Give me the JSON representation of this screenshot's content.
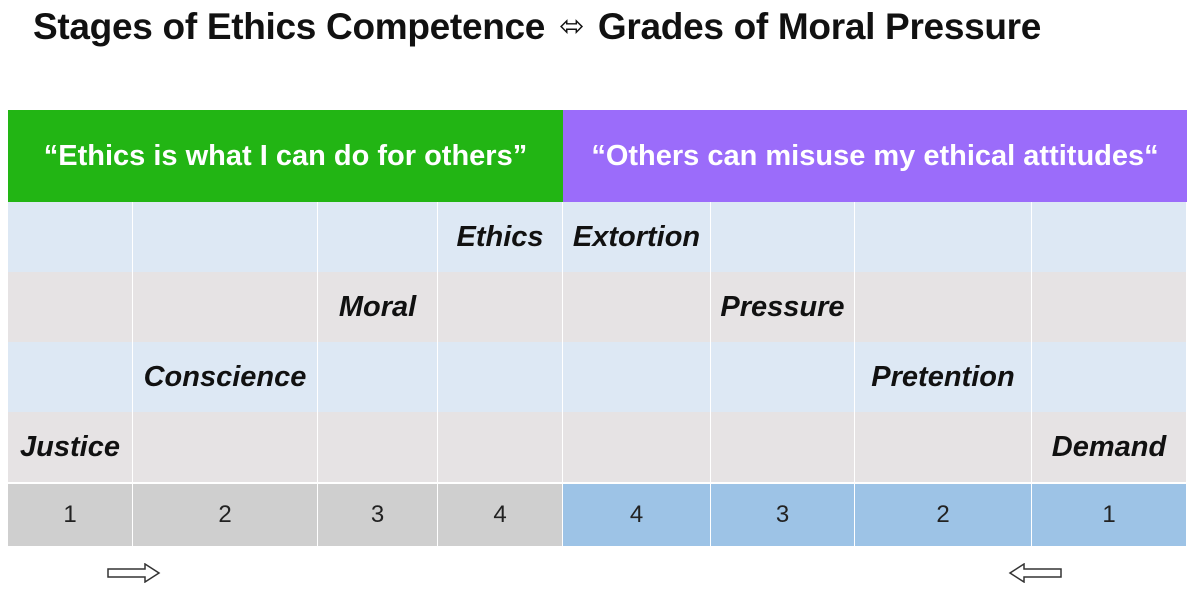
{
  "title": {
    "left": "Stages of Ethics Competence",
    "symbol": "⬄",
    "right": "Grades of Moral Pressure"
  },
  "headers": {
    "left": "“Ethics is what I can do for others”",
    "right": "“Others can misuse my ethical attitudes“"
  },
  "rows": [
    [
      "",
      "",
      "",
      "Ethics",
      "Extortion",
      "",
      "",
      ""
    ],
    [
      "",
      "",
      "Moral",
      "",
      "",
      "Pressure",
      "",
      ""
    ],
    [
      "",
      "Conscience",
      "",
      "",
      "",
      "",
      "Pretention",
      ""
    ],
    [
      "Justice",
      "",
      "",
      "",
      "",
      "",
      "",
      "Demand"
    ]
  ],
  "numbers": [
    "1",
    "2",
    "3",
    "4",
    "4",
    "3",
    "2",
    "1"
  ],
  "arrows": {
    "left": "right-arrow-icon",
    "right": "left-arrow-icon"
  },
  "colors": {
    "left_header": "#22b514",
    "right_header": "#9b6cfa",
    "row_light_blue": "#dde8f4",
    "row_light_gray": "#e6e3e4",
    "num_gray": "#cfcfcf",
    "num_blue": "#9dc3e6"
  }
}
